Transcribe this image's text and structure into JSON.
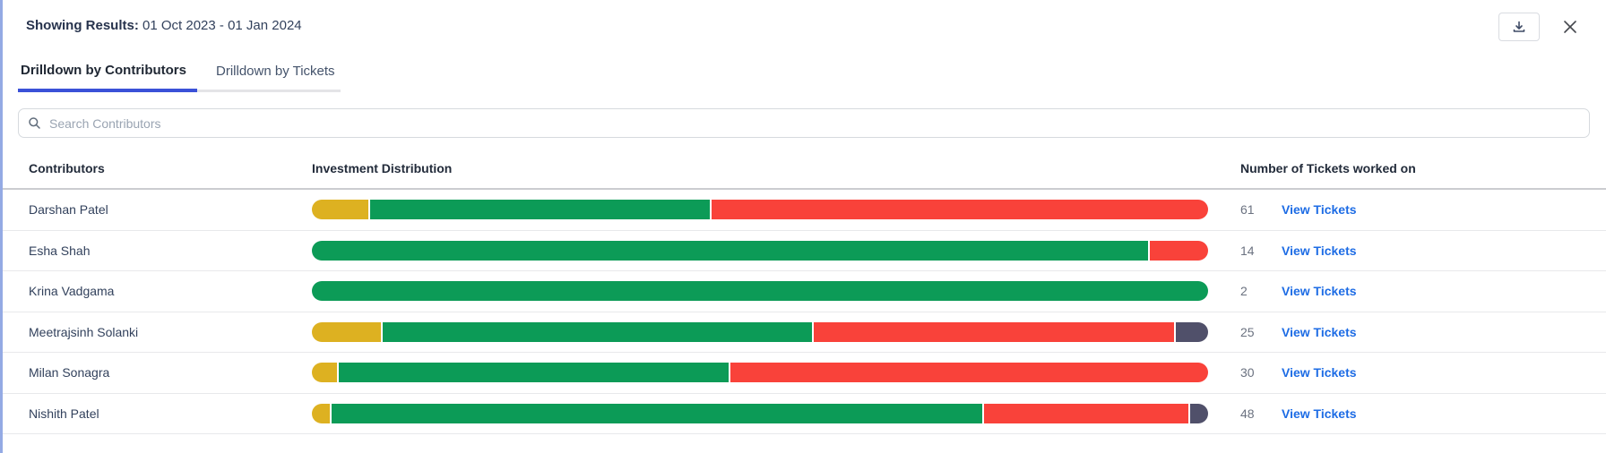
{
  "header": {
    "showing_results_label": "Showing Results:",
    "date_range": "01 Oct 2023 - 01 Jan 2024"
  },
  "tabs": [
    {
      "label": "Drilldown by Contributors",
      "active": true
    },
    {
      "label": "Drilldown by Tickets",
      "active": false
    }
  ],
  "search": {
    "placeholder": "Search Contributors",
    "value": "",
    "icon": "search-icon"
  },
  "table": {
    "columns": [
      "Contributors",
      "Investment Distribution",
      "Number of Tickets worked on"
    ],
    "view_tickets_label": "View Tickets",
    "rows": [
      {
        "name": "Darshan Patel",
        "tickets": "61",
        "segments": [
          {
            "color": "yellow",
            "pct": 6.3
          },
          {
            "color": "green",
            "pct": 38.1
          },
          {
            "color": "red",
            "pct": 55.6
          }
        ]
      },
      {
        "name": "Esha Shah",
        "tickets": "14",
        "segments": [
          {
            "color": "green",
            "pct": 93.5
          },
          {
            "color": "red",
            "pct": 6.5
          }
        ]
      },
      {
        "name": "Krina Vadgama",
        "tickets": "2",
        "segments": [
          {
            "color": "green",
            "pct": 100
          }
        ]
      },
      {
        "name": "Meetrajsinh Solanki",
        "tickets": "25",
        "segments": [
          {
            "color": "yellow",
            "pct": 7.7
          },
          {
            "color": "green",
            "pct": 48.2
          },
          {
            "color": "red",
            "pct": 40.5
          },
          {
            "color": "dark",
            "pct": 3.6
          }
        ]
      },
      {
        "name": "Milan Sonagra",
        "tickets": "30",
        "segments": [
          {
            "color": "yellow",
            "pct": 2.8
          },
          {
            "color": "green",
            "pct": 43.7
          },
          {
            "color": "red",
            "pct": 53.5
          }
        ]
      },
      {
        "name": "Nishith Patel",
        "tickets": "48",
        "segments": [
          {
            "color": "yellow",
            "pct": 2.0
          },
          {
            "color": "green",
            "pct": 73.0
          },
          {
            "color": "red",
            "pct": 23.0
          },
          {
            "color": "dark",
            "pct": 2.0
          }
        ]
      }
    ]
  },
  "colors": {
    "yellow": "#ddb121",
    "green": "#0c9b57",
    "red": "#f9423a",
    "dark": "#50506a",
    "accent_blue": "#3b51d8",
    "link_blue": "#1d6ce5",
    "panel_edge": "#94aae4"
  }
}
